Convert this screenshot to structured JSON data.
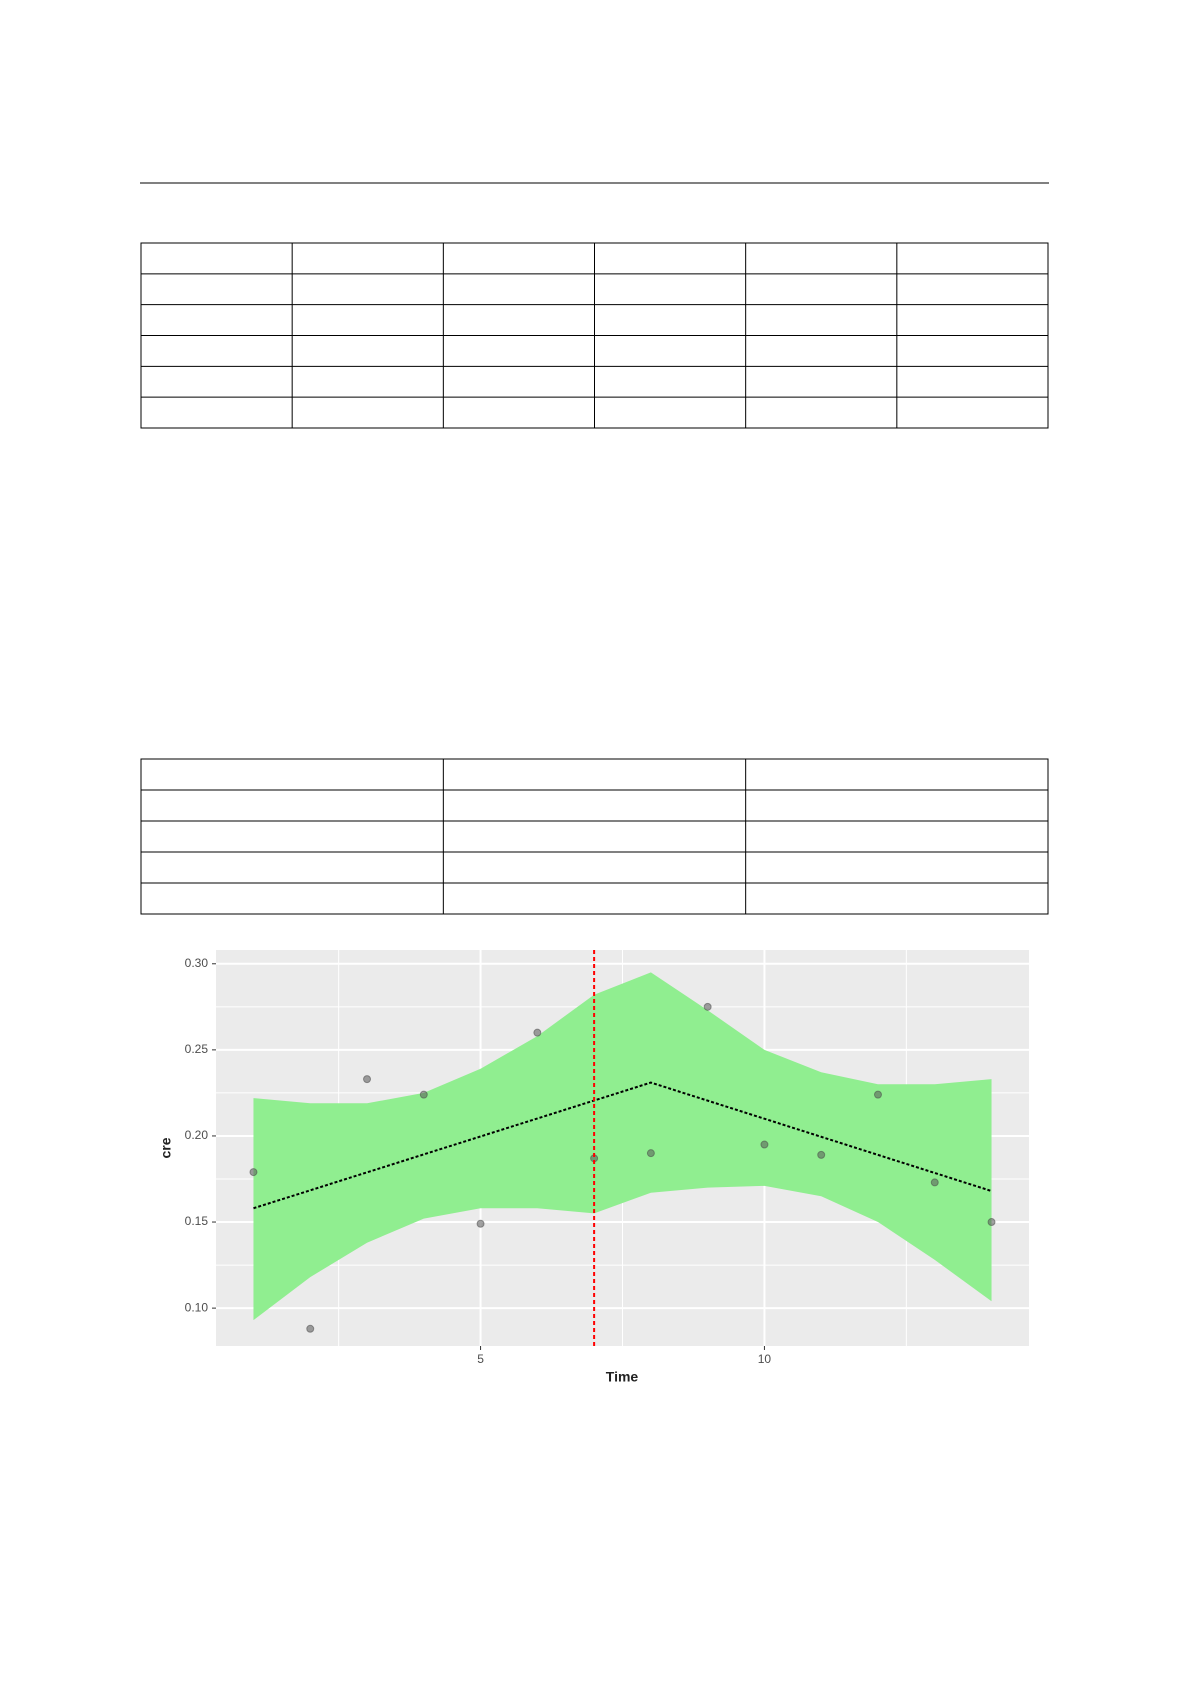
{
  "chart_data": {
    "type": "scatter",
    "x_label": "Time",
    "y_label": "cre",
    "xlim": [
      0.34,
      14.66
    ],
    "ylim": [
      0.078,
      0.308
    ],
    "xticks": [
      5,
      10
    ],
    "yticks": [
      {
        "value": 0.1,
        "label": "0.10"
      },
      0.15,
      {
        "value": 0.2,
        "label": "0.20"
      },
      0.25,
      {
        "value": 0.3,
        "label": "0.30"
      }
    ],
    "xminor": [
      2.5,
      7.5,
      12.5
    ],
    "yminor": [
      0.125,
      0.175,
      0.225,
      0.275
    ],
    "grid": true,
    "points": {
      "color": "#555555",
      "x": [
        1,
        2,
        3,
        4,
        5,
        6,
        7,
        8,
        9,
        10,
        11,
        12,
        13,
        14
      ],
      "values": [
        0.179,
        0.088,
        0.233,
        0.224,
        0.149,
        0.26,
        0.187,
        0.19,
        0.275,
        0.195,
        0.189,
        0.224,
        0.173,
        0.15
      ]
    },
    "band": {
      "color": "#90ee90",
      "x": [
        1,
        2,
        3,
        4,
        5,
        6,
        7,
        8,
        9,
        10,
        11,
        12,
        13,
        14
      ],
      "upper": [
        0.222,
        0.219,
        0.219,
        0.225,
        0.239,
        0.258,
        0.282,
        0.295,
        0.273,
        0.25,
        0.237,
        0.23,
        0.23,
        0.233
      ],
      "lower": [
        0.093,
        0.118,
        0.138,
        0.152,
        0.158,
        0.158,
        0.155,
        0.167,
        0.17,
        0.171,
        0.165,
        0.15,
        0.128,
        0.104
      ]
    },
    "fit": {
      "color": "#000000",
      "x": [
        1,
        8,
        14
      ],
      "values": [
        0.158,
        0.231,
        0.168
      ]
    },
    "breakpoint": {
      "color": "#ff0000",
      "x": 7
    }
  }
}
